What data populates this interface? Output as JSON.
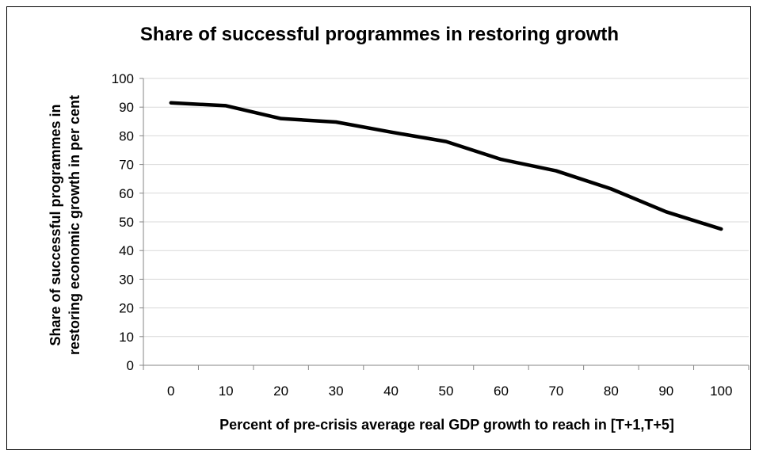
{
  "chart_data": {
    "type": "line",
    "title": "Share of successful programmes in restoring growth",
    "xlabel": "Percent of pre-crisis average real GDP growth to reach in [T+1,T+5]",
    "ylabel_line1": "Share of successful programmes in",
    "ylabel_line2": "restoring economic growth in per cent",
    "x": [
      0,
      10,
      20,
      30,
      40,
      50,
      60,
      70,
      80,
      90,
      100
    ],
    "series": [
      {
        "values": [
          91.5,
          90.5,
          86,
          84.8,
          81.3,
          78,
          71.8,
          67.8,
          61.5,
          53.5,
          47.5
        ],
        "color": "#000000"
      }
    ],
    "ylim": [
      0,
      100
    ],
    "y_ticks": [
      "0",
      "10",
      "20",
      "30",
      "40",
      "50",
      "60",
      "70",
      "80",
      "90",
      "100"
    ],
    "x_ticks": [
      "0",
      "10",
      "20",
      "30",
      "40",
      "50",
      "60",
      "70",
      "80",
      "90",
      "100"
    ],
    "grid": "horizontal",
    "legend": "none",
    "gridline_color": "#d9d9d9",
    "axis_color": "#868686"
  }
}
